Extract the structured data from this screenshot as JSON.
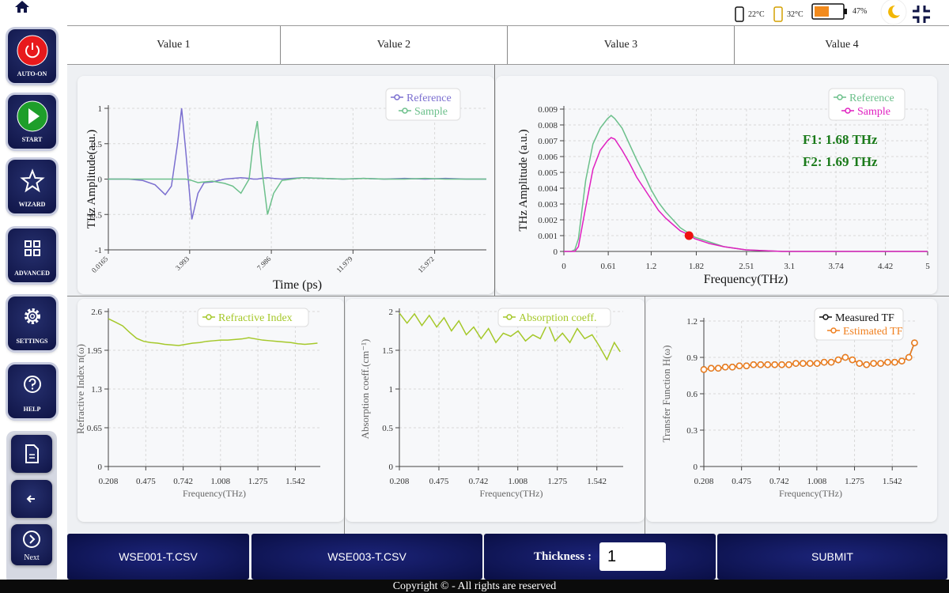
{
  "status_bar": {
    "temp_1": "22°C",
    "temp_2": "32°C",
    "battery": "47%"
  },
  "sidebar": {
    "buttons": [
      "AUTO-ON",
      "START",
      "WIZARD",
      "ADVANCED",
      "SETTINGS",
      "HELP"
    ],
    "next": "Next"
  },
  "header": {
    "values": [
      "Value 1",
      "Value 2",
      "Value 3",
      "Value 4"
    ]
  },
  "chart_data": [
    {
      "type": "line",
      "xlabel": "Time (ps)",
      "ylabel": "THz Amplitude(a.u.)",
      "x": [
        0,
        1,
        1.7,
        2.3,
        2.8,
        3.1,
        3.4,
        3.6,
        3.8,
        4.1,
        4.4,
        4.7,
        5.1,
        5.7,
        6.1,
        6.5,
        6.9,
        7.1,
        7.3,
        7.5,
        7.8,
        8.1,
        8.5,
        9.5,
        10.5,
        11.5,
        12.5,
        13.5,
        14.5,
        15.5,
        16.5,
        17.5,
        18.5
      ],
      "series": [
        {
          "name": "Reference",
          "color": "#7b6fd0",
          "values": [
            0,
            0,
            -0.02,
            -0.08,
            -0.22,
            -0.1,
            0.5,
            1,
            0.4,
            -0.57,
            -0.2,
            -0.05,
            -0.04,
            0,
            0.01,
            0.02,
            0.01,
            0,
            0,
            0.01,
            0.02,
            0.01,
            0,
            0.02,
            0.01,
            0,
            0.01,
            0,
            0.01,
            0,
            0.01,
            0,
            0
          ]
        },
        {
          "name": "Sample",
          "color": "#6cc08b",
          "values": [
            0,
            0,
            0,
            0,
            0,
            0,
            0,
            0,
            0,
            -0.02,
            -0.05,
            -0.04,
            -0.03,
            -0.06,
            -0.1,
            -0.2,
            0,
            0.5,
            0.82,
            0.2,
            -0.5,
            -0.2,
            -0.02,
            0.02,
            0.01,
            0,
            0.01,
            0,
            0,
            0.01,
            0,
            0,
            0
          ]
        }
      ],
      "xlim": [
        0.0165,
        18.5
      ],
      "xticks": [
        0.0165,
        3.993,
        7.986,
        11.979,
        15.972
      ],
      "ylim": [
        -1,
        1
      ],
      "yticks": [
        -1,
        -0.5,
        0,
        0.5,
        1
      ],
      "grid": true
    },
    {
      "type": "line",
      "xlabel": "Frequency(THz)",
      "ylabel": "THz Amplitude (a.u.)",
      "x": [
        0,
        0.1,
        0.15,
        0.2,
        0.3,
        0.4,
        0.5,
        0.6,
        0.65,
        0.7,
        0.8,
        0.9,
        1.0,
        1.1,
        1.2,
        1.3,
        1.4,
        1.5,
        1.6,
        1.7,
        1.8,
        2.0,
        2.2,
        2.5,
        3.0,
        3.5,
        4.0,
        4.5,
        5.0
      ],
      "series": [
        {
          "name": "Reference",
          "color": "#6cc08b",
          "values": [
            0,
            0,
            0.0001,
            0.0008,
            0.0045,
            0.0068,
            0.0078,
            0.0084,
            0.0086,
            0.0084,
            0.0078,
            0.0068,
            0.0058,
            0.0049,
            0.0039,
            0.0031,
            0.0025,
            0.002,
            0.0015,
            0.0012,
            0.0009,
            0.0006,
            0.0003,
            0.0001,
            0,
            0,
            0,
            0,
            0
          ]
        },
        {
          "name": "Sample",
          "color": "#e020c0",
          "values": [
            0,
            0,
            0,
            0.0003,
            0.0028,
            0.0052,
            0.0064,
            0.007,
            0.0072,
            0.0071,
            0.0064,
            0.0056,
            0.0047,
            0.004,
            0.0033,
            0.0026,
            0.0021,
            0.0017,
            0.0013,
            0.0011,
            0.0008,
            0.0005,
            0.0003,
            0.0001,
            0,
            0,
            0,
            0,
            0
          ]
        }
      ],
      "highlight": {
        "x": 1.72,
        "y": 0.001,
        "color": "#ee1111"
      },
      "annotations": [
        "F1: 1.68 THz",
        "F2: 1.69 THz"
      ],
      "annotation_color": "#1a7a1a",
      "xlim": [
        0,
        5
      ],
      "xticks": [
        0,
        0.61,
        1.2,
        1.82,
        2.51,
        3.1,
        3.74,
        4.42,
        5
      ],
      "ylim": [
        0,
        0.009
      ],
      "yticks": [
        0,
        0.001,
        0.002,
        0.003,
        0.004,
        0.005,
        0.006,
        0.007,
        0.008,
        0.009
      ],
      "grid": true
    },
    {
      "type": "line",
      "xlabel": "Frequency(THz)",
      "ylabel": "Refractive Index n(ω)",
      "x": [
        0.208,
        0.26,
        0.31,
        0.36,
        0.41,
        0.46,
        0.51,
        0.56,
        0.61,
        0.66,
        0.71,
        0.76,
        0.81,
        0.86,
        0.91,
        0.96,
        1.01,
        1.06,
        1.11,
        1.16,
        1.21,
        1.26,
        1.31,
        1.36,
        1.41,
        1.46,
        1.51,
        1.56,
        1.61,
        1.66,
        1.7
      ],
      "series": [
        {
          "name": "Refractive Index",
          "color": "#a5c82a",
          "values": [
            2.48,
            2.42,
            2.36,
            2.25,
            2.15,
            2.1,
            2.08,
            2.07,
            2.05,
            2.04,
            2.03,
            2.05,
            2.07,
            2.08,
            2.1,
            2.11,
            2.12,
            2.12,
            2.13,
            2.14,
            2.16,
            2.14,
            2.12,
            2.11,
            2.1,
            2.09,
            2.08,
            2.06,
            2.05,
            2.06,
            2.07
          ]
        }
      ],
      "xlim": [
        0.208,
        1.72
      ],
      "xticks": [
        0.208,
        0.475,
        0.742,
        1.008,
        1.275,
        1.542
      ],
      "ylim": [
        0,
        2.6
      ],
      "yticks": [
        0,
        0.65,
        1.3,
        1.95,
        2.6
      ],
      "grid": true
    },
    {
      "type": "line",
      "xlabel": "Frequency(THz)",
      "ylabel": "Absorption coeff.(cm⁻¹)",
      "x": [
        0.208,
        0.26,
        0.31,
        0.36,
        0.41,
        0.46,
        0.51,
        0.56,
        0.61,
        0.66,
        0.71,
        0.76,
        0.81,
        0.86,
        0.91,
        0.96,
        1.01,
        1.06,
        1.11,
        1.16,
        1.21,
        1.26,
        1.31,
        1.36,
        1.41,
        1.46,
        1.51,
        1.56,
        1.61,
        1.66,
        1.7
      ],
      "series": [
        {
          "name": "Absorption coeff.",
          "color": "#a5c82a",
          "values": [
            1.98,
            1.85,
            1.97,
            1.82,
            1.95,
            1.8,
            1.92,
            1.75,
            1.88,
            1.7,
            1.8,
            1.65,
            1.78,
            1.6,
            1.72,
            1.68,
            1.75,
            1.62,
            1.7,
            1.65,
            1.85,
            1.62,
            1.72,
            1.6,
            1.78,
            1.65,
            1.7,
            1.55,
            1.38,
            1.6,
            1.48
          ]
        }
      ],
      "xlim": [
        0.208,
        1.72
      ],
      "xticks": [
        0.208,
        0.475,
        0.742,
        1.008,
        1.275,
        1.542
      ],
      "ylim": [
        0,
        2
      ],
      "yticks": [
        0,
        0.5,
        1,
        1.5,
        2
      ],
      "grid": true
    },
    {
      "type": "line",
      "xlabel": "Frequency(THz)",
      "ylabel": "Transfer Function H(ω)",
      "markers": true,
      "x": [
        0.208,
        0.26,
        0.31,
        0.36,
        0.41,
        0.46,
        0.51,
        0.56,
        0.61,
        0.66,
        0.71,
        0.76,
        0.81,
        0.86,
        0.91,
        0.96,
        1.01,
        1.06,
        1.11,
        1.16,
        1.21,
        1.26,
        1.31,
        1.36,
        1.41,
        1.46,
        1.51,
        1.56,
        1.61,
        1.66,
        1.7
      ],
      "series": [
        {
          "name": "Measured TF",
          "color": "#111111",
          "values": [
            0.8,
            0.81,
            0.81,
            0.82,
            0.82,
            0.83,
            0.83,
            0.84,
            0.84,
            0.84,
            0.84,
            0.84,
            0.84,
            0.85,
            0.85,
            0.85,
            0.85,
            0.86,
            0.86,
            0.88,
            0.9,
            0.88,
            0.85,
            0.84,
            0.85,
            0.85,
            0.86,
            0.86,
            0.87,
            0.9,
            1.02
          ]
        },
        {
          "name": "Estimated TF",
          "color": "#f07f1e",
          "values": [
            0.8,
            0.81,
            0.81,
            0.82,
            0.82,
            0.83,
            0.83,
            0.84,
            0.84,
            0.84,
            0.84,
            0.84,
            0.84,
            0.85,
            0.85,
            0.85,
            0.85,
            0.86,
            0.86,
            0.88,
            0.9,
            0.88,
            0.85,
            0.84,
            0.85,
            0.85,
            0.86,
            0.86,
            0.87,
            0.9,
            1.02
          ]
        }
      ],
      "xlim": [
        0.208,
        1.72
      ],
      "xticks": [
        0.208,
        0.475,
        0.742,
        1.008,
        1.275,
        1.542
      ],
      "ylim": [
        0,
        1.2
      ],
      "yticks": [
        0,
        0.3,
        0.6,
        0.9,
        1.2
      ],
      "grid": true
    }
  ],
  "bottom_bar": {
    "file_1": "WSE001-T.CSV",
    "file_2": "WSE003-T.CSV",
    "thickness_label": "Thickness :",
    "thickness_value": "1",
    "submit": "SUBMIT"
  },
  "footer": "Copyright © - All rights are reserved"
}
